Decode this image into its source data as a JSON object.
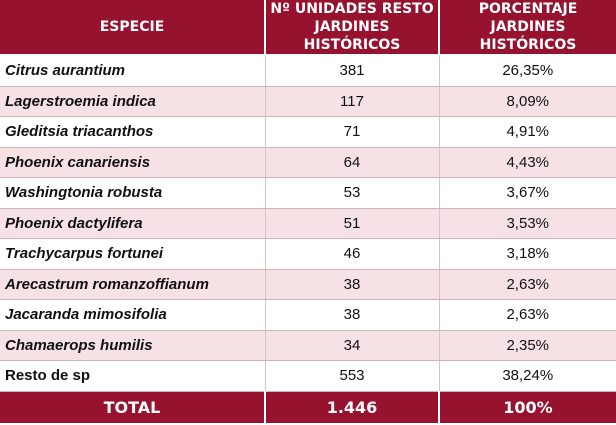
{
  "headers": {
    "species": "ESPECIE",
    "units": "Nº UNIDADES RESTO JARDINES HISTÓRICOS",
    "percent": "PORCENTAJE JARDINES HISTÓRICOS"
  },
  "rows": [
    {
      "species": "Citrus aurantium",
      "units": "381",
      "percent": "26,35%"
    },
    {
      "species": "Lagerstroemia indica",
      "units": "117",
      "percent": "8,09%"
    },
    {
      "species": "Gleditsia triacanthos",
      "units": "71",
      "percent": "4,91%"
    },
    {
      "species": "Phoenix canariensis",
      "units": "64",
      "percent": "4,43%"
    },
    {
      "species": "Washingtonia robusta",
      "units": "53",
      "percent": "3,67%"
    },
    {
      "species": "Phoenix dactylifera",
      "units": "51",
      "percent": "3,53%"
    },
    {
      "species": "Trachycarpus fortunei",
      "units": "46",
      "percent": "3,18%"
    },
    {
      "species": "Arecastrum romanzoffianum",
      "units": "38",
      "percent": "2,63%"
    },
    {
      "species": "Jacaranda mimosifolia",
      "units": "38",
      "percent": "2,63%"
    },
    {
      "species": "Chamaerops humilis",
      "units": "34",
      "percent": "2,35%"
    },
    {
      "species": "Resto de sp",
      "units": "553",
      "percent": "38,24%"
    }
  ],
  "total": {
    "label": "TOTAL",
    "units": "1.446",
    "percent": "100%"
  }
}
